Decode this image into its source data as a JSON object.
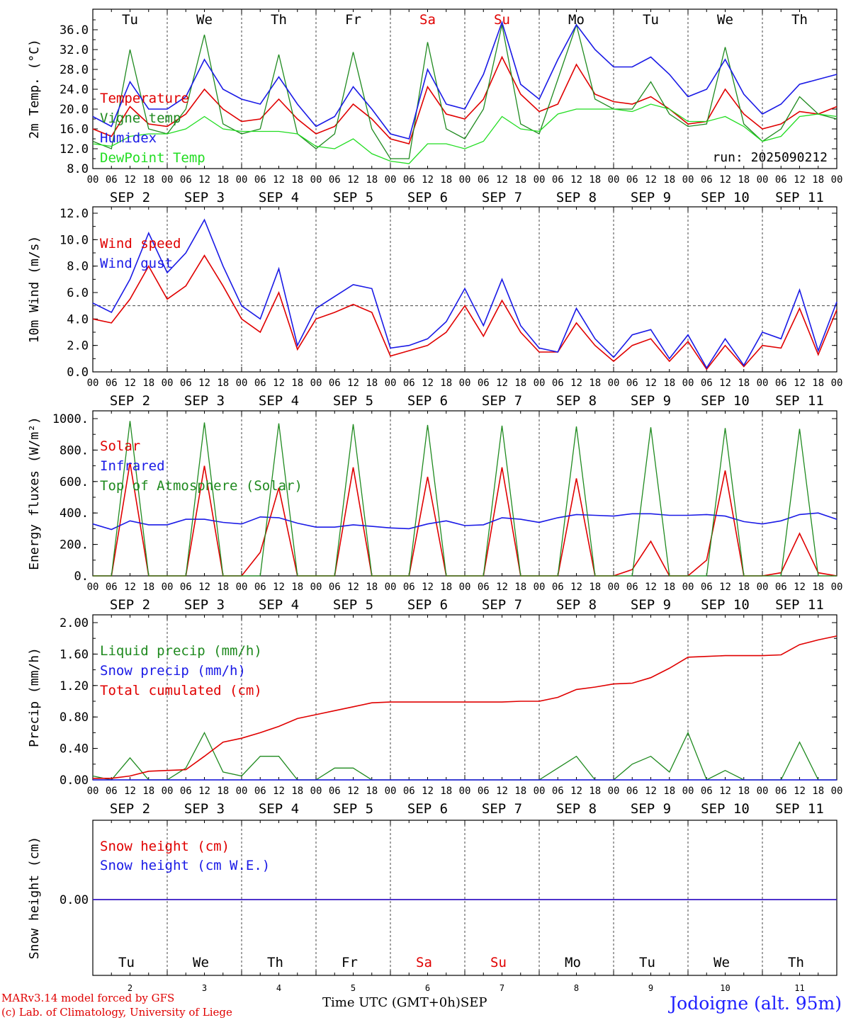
{
  "station": "Jodoigne (alt. 95m)",
  "run_label": "run: 2025090212",
  "credits": [
    "MARv3.14 model forced by GFS",
    "(c) Lab. of Climatology, University of Liege"
  ],
  "x_caption": "Time UTC (GMT+0h)",
  "x_month": "SEP",
  "dates": [
    "2",
    "3",
    "4",
    "5",
    "6",
    "7",
    "8",
    "9",
    "10",
    "11"
  ],
  "date_labels": [
    "SEP  2",
    "SEP  3",
    "SEP  4",
    "SEP  5",
    "SEP  6",
    "SEP  7",
    "SEP  8",
    "SEP  9",
    "SEP 10",
    "SEP 11"
  ],
  "weekdays": [
    "Tu",
    "We",
    "Th",
    "Fr",
    "Sa",
    "Su",
    "Mo",
    "Tu",
    "We",
    "Th"
  ],
  "weekday_colors": [
    "#000000",
    "#000000",
    "#000000",
    "#000000",
    "#e00000",
    "#e00000",
    "#000000",
    "#000000",
    "#000000",
    "#000000"
  ],
  "hour_ticks": [
    "00",
    "06",
    "12",
    "18"
  ],
  "final_tick": "00",
  "colors": {
    "red": "#e00000",
    "green": "#1f8a1f",
    "blue": "#1a1ae6",
    "lightgreen": "#22dd22"
  },
  "chart_data": [
    {
      "type": "line",
      "ylabel": "2m Temp. (°C)",
      "ylim": [
        8,
        38
      ],
      "yticks": [
        "8.0",
        "12.0",
        "16.0",
        "20.0",
        "24.0",
        "28.0",
        "32.0",
        "36.0"
      ],
      "grid": "vertical dashed at day boundaries",
      "legend_placement": "left",
      "x": [
        0,
        6,
        12,
        18,
        24,
        30,
        36,
        42,
        48,
        54,
        60,
        66,
        72,
        78,
        84,
        90,
        96,
        102,
        108,
        114,
        120,
        126,
        132,
        138,
        144,
        150,
        156,
        162,
        168,
        174,
        180,
        186,
        192,
        198,
        204,
        210,
        216,
        222,
        228,
        234,
        240
      ],
      "series": [
        {
          "name": "Temperature",
          "color": "red",
          "values": [
            16.0,
            14.5,
            20.5,
            17.0,
            16.5,
            19.0,
            24.0,
            20.0,
            17.5,
            18.0,
            22.0,
            18.0,
            15.0,
            16.5,
            21.0,
            18.0,
            14.0,
            13.0,
            24.5,
            19.0,
            18.0,
            22.0,
            30.5,
            23.0,
            19.5,
            21.0,
            29.0,
            23.0,
            21.5,
            21.0,
            22.5,
            20.0,
            17.0,
            17.5,
            24.0,
            19.0,
            16.0,
            17.0,
            19.5,
            19.0,
            20.5
          ]
        },
        {
          "name": "Vigne temp",
          "color": "green",
          "values": [
            13.5,
            12.0,
            32.0,
            16.0,
            15.0,
            20.0,
            35.0,
            17.0,
            15.0,
            16.0,
            31.0,
            15.0,
            12.0,
            15.0,
            31.5,
            16.0,
            10.0,
            10.0,
            33.5,
            16.0,
            14.0,
            20.0,
            37.0,
            17.0,
            15.0,
            26.0,
            37.0,
            22.0,
            20.0,
            20.0,
            25.5,
            19.0,
            16.5,
            17.0,
            32.5,
            17.0,
            13.5,
            16.0,
            22.5,
            19.0,
            18.0
          ]
        },
        {
          "name": "Humidex",
          "color": "blue",
          "values": [
            18.5,
            16.5,
            25.5,
            20.0,
            20.0,
            22.5,
            30.0,
            24.0,
            22.0,
            21.0,
            26.5,
            21.0,
            16.5,
            18.5,
            24.5,
            20.0,
            15.0,
            14.0,
            28.0,
            21.0,
            20.0,
            27.0,
            37.5,
            25.0,
            22.0,
            30.0,
            37.0,
            32.0,
            28.5,
            28.5,
            30.5,
            27.0,
            22.5,
            24.0,
            30.0,
            23.0,
            19.0,
            21.0,
            25.0,
            26.0,
            27.0
          ]
        },
        {
          "name": "DewPoint Temp",
          "color": "lightgreen",
          "values": [
            13.0,
            12.5,
            14.5,
            15.0,
            15.0,
            16.0,
            18.5,
            16.0,
            15.5,
            15.5,
            15.5,
            15.0,
            12.5,
            12.0,
            14.0,
            11.0,
            9.5,
            9.0,
            13.0,
            13.0,
            12.0,
            13.5,
            18.5,
            16.0,
            15.5,
            19.0,
            20.0,
            20.0,
            20.0,
            19.5,
            21.0,
            20.0,
            17.5,
            17.5,
            18.5,
            16.5,
            13.5,
            14.5,
            18.5,
            19.0,
            18.5
          ]
        }
      ],
      "annotation": "run: 2025090212"
    },
    {
      "type": "line",
      "ylabel": "10m Wind (m/s)",
      "ylim": [
        0,
        12
      ],
      "yticks": [
        "0.0",
        "2.0",
        "4.0",
        "6.0",
        "8.0",
        "10.0",
        "12.0"
      ],
      "reference_line": 5.0,
      "legend_placement": "left",
      "x": [
        0,
        6,
        12,
        18,
        24,
        30,
        36,
        42,
        48,
        54,
        60,
        66,
        72,
        78,
        84,
        90,
        96,
        102,
        108,
        114,
        120,
        126,
        132,
        138,
        144,
        150,
        156,
        162,
        168,
        174,
        180,
        186,
        192,
        198,
        204,
        210,
        216,
        222,
        228,
        234,
        240
      ],
      "series": [
        {
          "name": "Wind speed",
          "color": "red",
          "values": [
            4.0,
            3.7,
            5.5,
            8.0,
            5.5,
            6.5,
            8.8,
            6.5,
            4.0,
            3.0,
            6.0,
            1.7,
            4.0,
            4.5,
            5.1,
            4.5,
            1.2,
            1.6,
            2.0,
            3.0,
            5.0,
            2.7,
            5.4,
            3.0,
            1.5,
            1.5,
            3.7,
            2.0,
            0.8,
            2.0,
            2.5,
            0.8,
            2.3,
            0.2,
            2.0,
            0.4,
            2.0,
            1.8,
            4.8,
            1.3,
            4.7
          ]
        },
        {
          "name": "Wind gust",
          "color": "blue",
          "values": [
            5.2,
            4.5,
            7.0,
            10.5,
            7.5,
            9.0,
            11.5,
            8.0,
            5.0,
            4.0,
            7.8,
            2.0,
            4.8,
            5.7,
            6.6,
            6.3,
            1.8,
            2.0,
            2.5,
            3.8,
            6.3,
            3.5,
            7.0,
            3.5,
            1.8,
            1.5,
            4.8,
            2.5,
            1.1,
            2.8,
            3.2,
            1.0,
            2.8,
            0.3,
            2.5,
            0.5,
            3.0,
            2.5,
            6.2,
            1.6,
            5.3
          ]
        }
      ]
    },
    {
      "type": "line",
      "ylabel": "Energy fluxes (W/m²)",
      "ylim": [
        0,
        1000
      ],
      "yticks": [
        "0.",
        "200.",
        "400.",
        "600.",
        "800.",
        "1000."
      ],
      "legend_placement": "left",
      "x": [
        0,
        6,
        12,
        18,
        24,
        30,
        36,
        42,
        48,
        54,
        60,
        66,
        72,
        78,
        84,
        90,
        96,
        102,
        108,
        114,
        120,
        126,
        132,
        138,
        144,
        150,
        156,
        162,
        168,
        174,
        180,
        186,
        192,
        198,
        204,
        210,
        216,
        222,
        228,
        234,
        240
      ],
      "series": [
        {
          "name": "Solar",
          "color": "red",
          "values": [
            0,
            0,
            720,
            0,
            0,
            0,
            700,
            0,
            0,
            150,
            560,
            0,
            0,
            0,
            690,
            0,
            0,
            0,
            630,
            0,
            0,
            0,
            690,
            0,
            0,
            0,
            620,
            0,
            0,
            40,
            220,
            0,
            0,
            100,
            670,
            0,
            0,
            20,
            270,
            20,
            0
          ]
        },
        {
          "name": "Infrared",
          "color": "blue",
          "values": [
            330,
            295,
            350,
            325,
            325,
            360,
            360,
            340,
            330,
            375,
            370,
            335,
            310,
            310,
            325,
            315,
            305,
            300,
            330,
            350,
            320,
            325,
            370,
            360,
            340,
            370,
            390,
            385,
            380,
            395,
            395,
            385,
            385,
            390,
            380,
            345,
            330,
            350,
            390,
            400,
            360
          ]
        },
        {
          "name": "Top of Atmosphere (Solar)",
          "color": "green",
          "values": [
            0,
            0,
            985,
            0,
            0,
            0,
            975,
            0,
            0,
            0,
            970,
            0,
            0,
            0,
            965,
            0,
            0,
            0,
            960,
            0,
            0,
            0,
            955,
            0,
            0,
            0,
            950,
            0,
            0,
            0,
            945,
            0,
            0,
            0,
            940,
            0,
            0,
            0,
            935,
            0,
            0
          ]
        }
      ]
    },
    {
      "type": "line",
      "ylabel": "Precip (mm/h)",
      "ylim": [
        0,
        2
      ],
      "yticks": [
        "0.00",
        "0.40",
        "0.80",
        "1.20",
        "1.60",
        "2.00"
      ],
      "legend_placement": "left",
      "x": [
        0,
        6,
        12,
        18,
        24,
        30,
        36,
        42,
        48,
        54,
        60,
        66,
        72,
        78,
        84,
        90,
        96,
        102,
        108,
        114,
        120,
        126,
        132,
        138,
        144,
        150,
        156,
        162,
        168,
        174,
        180,
        186,
        192,
        198,
        204,
        210,
        216,
        222,
        228,
        234,
        240
      ],
      "series": [
        {
          "name": "Liquid precip (mm/h)",
          "color": "green",
          "values": [
            0.05,
            0,
            0.28,
            0,
            0,
            0.15,
            0.6,
            0.1,
            0.05,
            0.3,
            0.3,
            0,
            0,
            0.15,
            0.15,
            0,
            0,
            0,
            0,
            0,
            0,
            0,
            0,
            0,
            0,
            0.15,
            0.3,
            0,
            0,
            0.2,
            0.3,
            0.1,
            0.6,
            0,
            0.12,
            0,
            0,
            0,
            0.48,
            0,
            0
          ]
        },
        {
          "name": "Snow precip (mm/h)",
          "color": "blue",
          "values": [
            0,
            0,
            0,
            0,
            0,
            0,
            0,
            0,
            0,
            0,
            0,
            0,
            0,
            0,
            0,
            0,
            0,
            0,
            0,
            0,
            0,
            0,
            0,
            0,
            0,
            0,
            0,
            0,
            0,
            0,
            0,
            0,
            0,
            0,
            0,
            0,
            0,
            0,
            0,
            0,
            0
          ]
        },
        {
          "name": "Total cumulated (cm)",
          "color": "red",
          "values": [
            0.02,
            0.02,
            0.05,
            0.11,
            0.12,
            0.13,
            0.3,
            0.48,
            0.53,
            0.6,
            0.68,
            0.78,
            0.83,
            0.88,
            0.93,
            0.98,
            0.99,
            0.99,
            0.99,
            0.99,
            0.99,
            0.99,
            0.99,
            1.0,
            1.0,
            1.05,
            1.15,
            1.18,
            1.22,
            1.23,
            1.3,
            1.42,
            1.56,
            1.57,
            1.58,
            1.58,
            1.58,
            1.59,
            1.72,
            1.78,
            1.83
          ]
        }
      ]
    },
    {
      "type": "line",
      "ylabel": "Snow height (cm)",
      "ylim": [
        -1,
        1
      ],
      "yticks": [
        "0.00"
      ],
      "legend_placement": "left",
      "x": [
        0,
        240
      ],
      "series": [
        {
          "name": "Snow height (cm)",
          "color": "red",
          "values": [
            0,
            0
          ]
        },
        {
          "name": "Snow height (cm W.E.)",
          "color": "blue",
          "values": [
            0,
            0
          ]
        }
      ]
    }
  ]
}
